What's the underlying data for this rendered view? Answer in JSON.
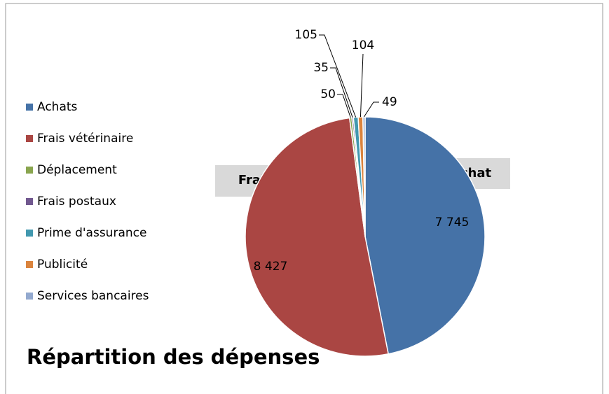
{
  "chart_data": {
    "type": "pie",
    "title": "Répartition des dépenses",
    "categories": [
      "Achats",
      "Frais vétérinaire",
      "Déplacement",
      "Frais postaux",
      "Prime d'assurance",
      "Publicité",
      "Services bancaires"
    ],
    "values": [
      7745,
      8427,
      50,
      35,
      105,
      104,
      49
    ],
    "value_labels": [
      "7 745",
      "8 427",
      "50",
      "35",
      "105",
      "104",
      "49"
    ],
    "colors": [
      "#4572a7",
      "#aa4643",
      "#89a54e",
      "#71588f",
      "#4198af",
      "#db843d",
      "#93a9cf"
    ],
    "annotations": [
      "Achat",
      "Frais véto"
    ],
    "legend": "left"
  }
}
